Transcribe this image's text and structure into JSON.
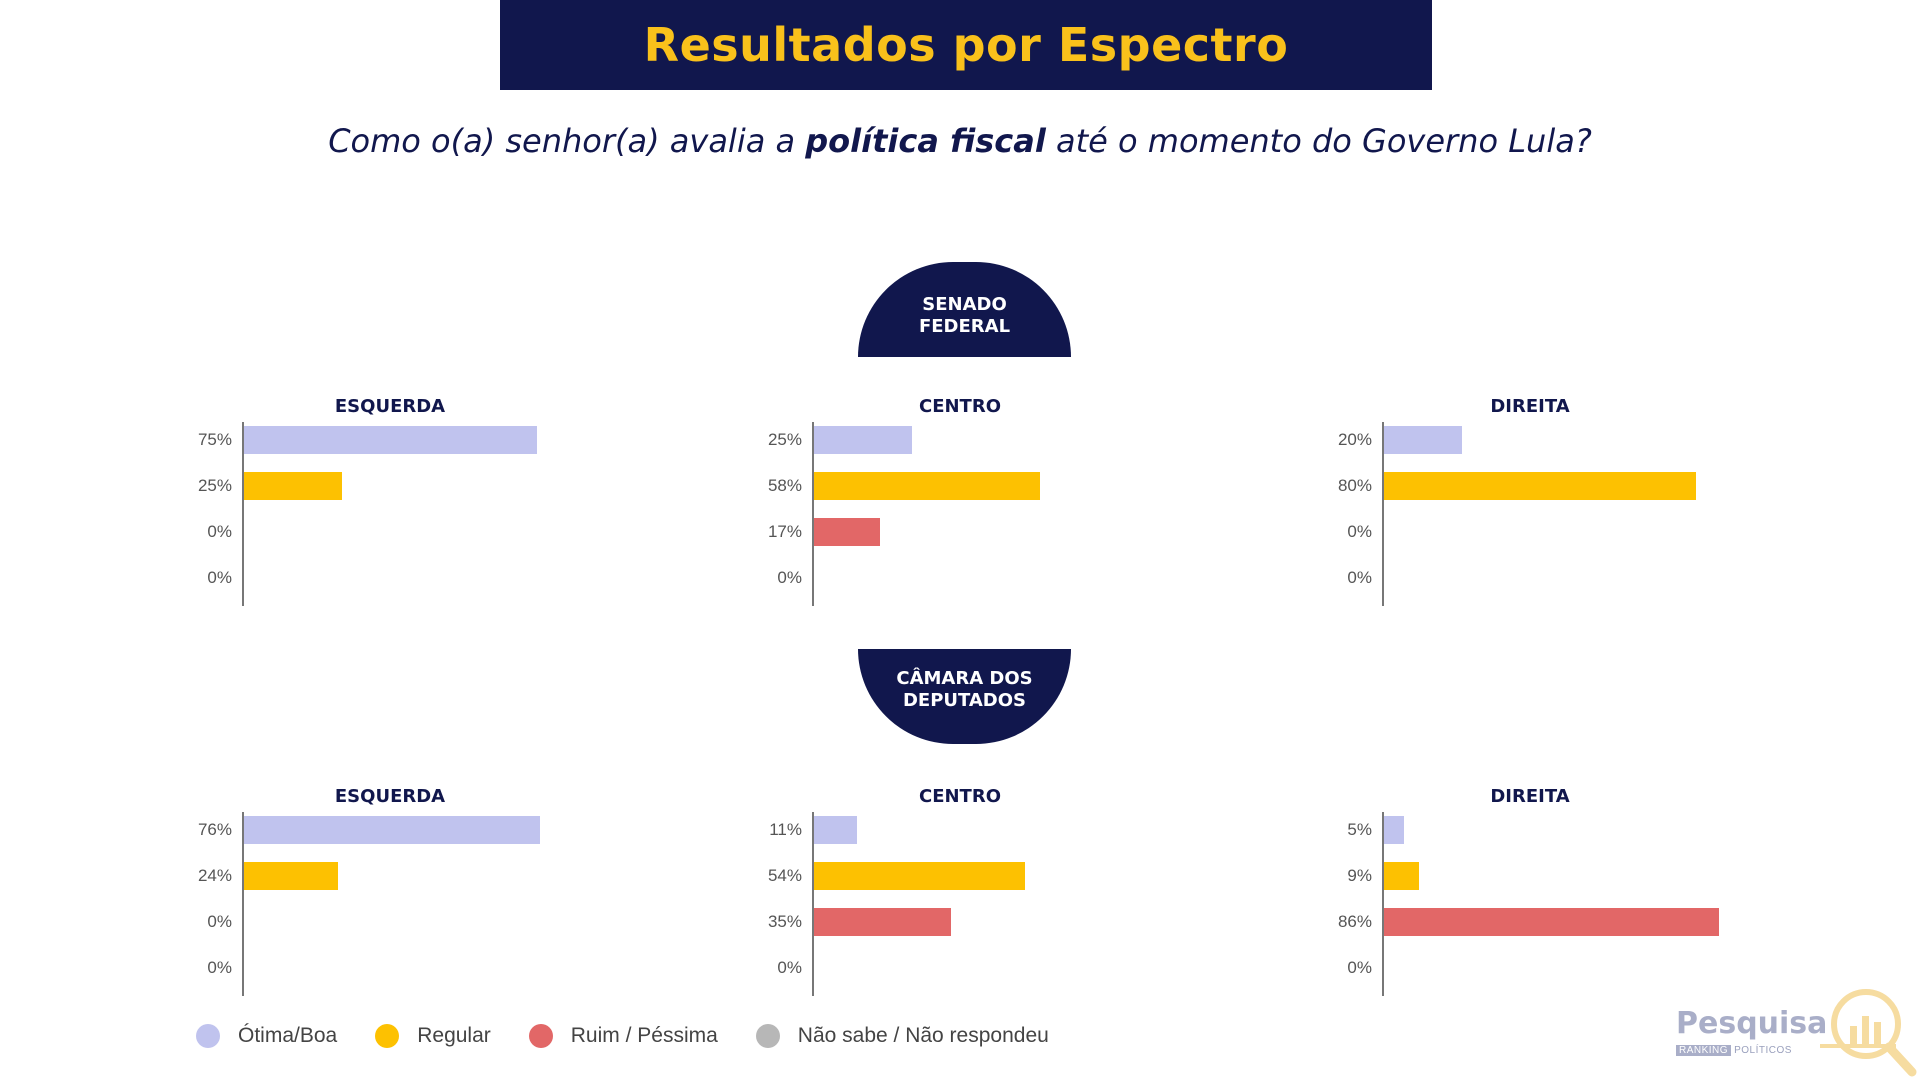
{
  "header": {
    "title": "Resultados por Espectro",
    "question_pre": "Como o(a) senhor(a) avalia a ",
    "question_bold": "política fiscal",
    "question_post": " até o momento do Governo Lula?"
  },
  "sections": {
    "senado": "SENADO FEDERAL",
    "camara": "CÂMARA DOS DEPUTADOS"
  },
  "colors": {
    "banner": "#11174d",
    "title": "#f9c11b",
    "otima": "#c0c3ee",
    "regular": "#fdc101",
    "ruim": "#e26767",
    "nao_sabe": "#b7b7b7"
  },
  "legend": [
    {
      "label": "Ótima/Boa",
      "color": "#c0c3ee"
    },
    {
      "label": "Regular",
      "color": "#fdc101"
    },
    {
      "label": "Ruim / Péssima",
      "color": "#e26767"
    },
    {
      "label": "Não sabe / Não respondeu",
      "color": "#b7b7b7"
    }
  ],
  "logo": {
    "main": "Pesquisa",
    "tag": "RANKING",
    "sub": "POLÍTICOS"
  },
  "chart_data": [
    {
      "type": "bar",
      "group": "SENADO FEDERAL",
      "title": "ESQUERDA",
      "categories": [
        "Ótima/Boa",
        "Regular",
        "Ruim / Péssima",
        "Não sabe / Não respondeu"
      ],
      "values": [
        75,
        25,
        0,
        0
      ],
      "labels": [
        "75%",
        "25%",
        "0%",
        "0%"
      ]
    },
    {
      "type": "bar",
      "group": "SENADO FEDERAL",
      "title": "CENTRO",
      "categories": [
        "Ótima/Boa",
        "Regular",
        "Ruim / Péssima",
        "Não sabe / Não respondeu"
      ],
      "values": [
        25,
        58,
        17,
        0
      ],
      "labels": [
        "25%",
        "58%",
        "17%",
        "0%"
      ]
    },
    {
      "type": "bar",
      "group": "SENADO FEDERAL",
      "title": "DIREITA",
      "categories": [
        "Ótima/Boa",
        "Regular",
        "Ruim / Péssima",
        "Não sabe / Não respondeu"
      ],
      "values": [
        20,
        80,
        0,
        0
      ],
      "labels": [
        "20%",
        "80%",
        "0%",
        "0%"
      ]
    },
    {
      "type": "bar",
      "group": "CÂMARA DOS DEPUTADOS",
      "title": "ESQUERDA",
      "categories": [
        "Ótima/Boa",
        "Regular",
        "Ruim / Péssima",
        "Não sabe / Não respondeu"
      ],
      "values": [
        76,
        24,
        0,
        0
      ],
      "labels": [
        "76%",
        "24%",
        "0%",
        "0%"
      ]
    },
    {
      "type": "bar",
      "group": "CÂMARA DOS DEPUTADOS",
      "title": "CENTRO",
      "categories": [
        "Ótima/Boa",
        "Regular",
        "Ruim / Péssima",
        "Não sabe / Não respondeu"
      ],
      "values": [
        11,
        54,
        35,
        0
      ],
      "labels": [
        "11%",
        "54%",
        "35%",
        "0%"
      ]
    },
    {
      "type": "bar",
      "group": "CÂMARA DOS DEPUTADOS",
      "title": "DIREITA",
      "categories": [
        "Ótima/Boa",
        "Regular",
        "Ruim / Péssima",
        "Não sabe / Não respondeu"
      ],
      "values": [
        5,
        9,
        86,
        0
      ],
      "labels": [
        "5%",
        "9%",
        "86%",
        "0%"
      ]
    }
  ]
}
